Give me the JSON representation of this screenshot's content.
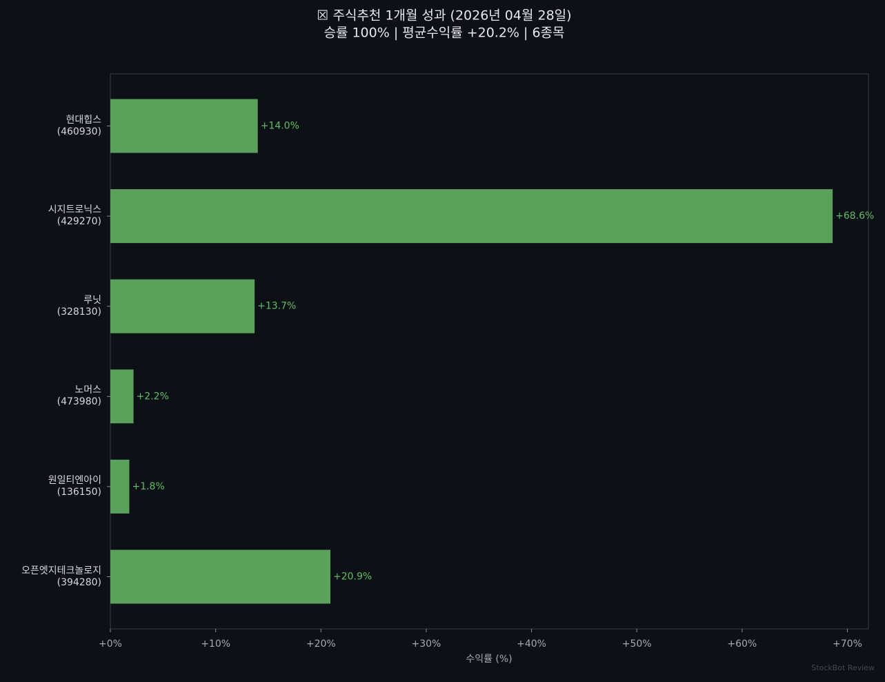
{
  "chart_data": {
    "type": "barh",
    "title": "☒ 주식추천 1개월 성과  (2026년 04월 28일)",
    "subtitle": "승률 100%  |  평균수익률 +20.2%  |  6종목",
    "x_label": "수익률 (%)",
    "watermark": "StockBot Review",
    "categories": [
      "현대힙스\n(460930)",
      "시지트로닉스\n(429270)",
      "루닛\n(328130)",
      "노머스\n(473980)",
      "원일티엔아이\n(136150)",
      "오픈엣지테크놀로지\n(394280)"
    ],
    "values": [
      14.0,
      68.6,
      13.7,
      2.2,
      1.8,
      20.9
    ],
    "value_labels": [
      "+14.0%",
      "+68.6%",
      "+13.7%",
      "+2.2%",
      "+1.8%",
      "+20.9%"
    ],
    "color": "#5aa25c",
    "label_color": "#5cbf62",
    "xlim": [
      0,
      72
    ],
    "xticks": [
      {
        "value": 0,
        "label": "+0%"
      },
      {
        "value": 10,
        "label": "+10%"
      },
      {
        "value": 20,
        "label": "+20%"
      },
      {
        "value": 30,
        "label": "+30%"
      },
      {
        "value": 40,
        "label": "+40%"
      },
      {
        "value": 50,
        "label": "+50%"
      },
      {
        "value": 60,
        "label": "+60%"
      },
      {
        "value": 70,
        "label": "+70%"
      }
    ]
  }
}
